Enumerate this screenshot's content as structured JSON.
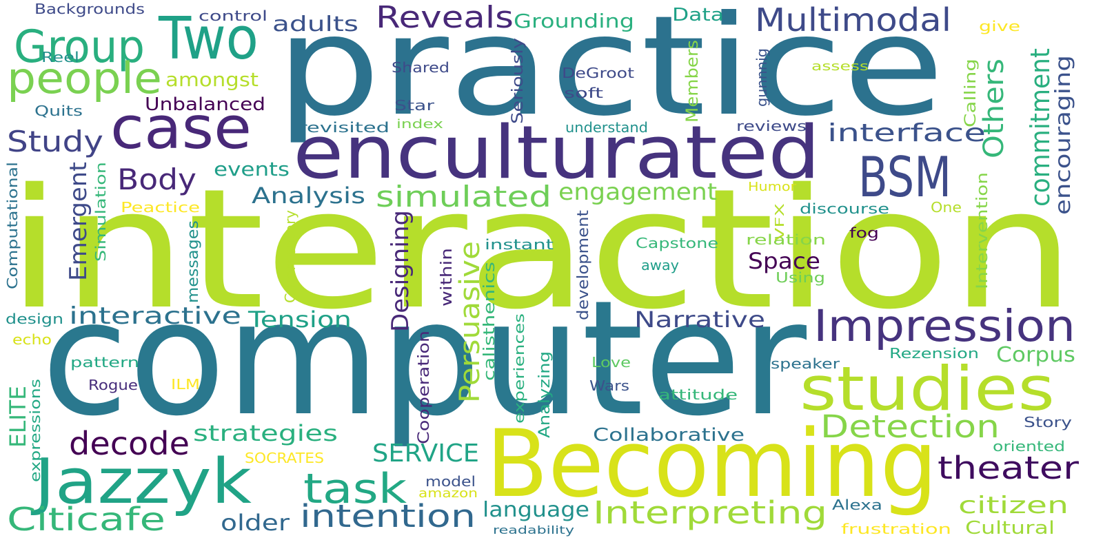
{
  "words": [
    "practice",
    "interaction",
    "computer",
    "enculturated",
    "Becoming",
    "studies",
    "BSM",
    "Impression",
    "Jazzyk",
    "case",
    "Two",
    "Group",
    "people",
    "task",
    "intention",
    "Citicafe",
    "decode",
    "Interpreting",
    "Detection",
    "theater",
    "Multimodal",
    "Reveals",
    "simulated",
    "engagement",
    "interface",
    "Study",
    "Body",
    "interactive",
    "Tension",
    "Narrative",
    "strategies",
    "SERVICE",
    "language",
    "Analysis",
    "events",
    "Space",
    "Collaborative",
    "Corpus",
    "citizen",
    "Cultural",
    "older",
    "Unbalanced",
    "amongst",
    "adults",
    "Grounding",
    "Data",
    "Backgrounds",
    "control",
    "Reel",
    "Quits",
    "Shared",
    "DeGroot",
    "soft",
    "Star",
    "revisited",
    "index",
    "understand",
    "reviews",
    "assess",
    "give",
    "Peactice",
    "Humor",
    "discourse",
    "One",
    "fog",
    "relation",
    "instant",
    "Capstone",
    "away",
    "Using",
    "design",
    "echo",
    "pattern",
    "Rogue",
    "ILM",
    "Love",
    "speaker",
    "Rezension",
    "Wars",
    "attitude",
    "Story",
    "oriented",
    "SOCRATES",
    "model",
    "amazon",
    "Alexa",
    "readability",
    "frustration",
    "Others",
    "commitment",
    "encouraging",
    "Calling",
    "gunnnig",
    "Members",
    "Seriously",
    "Emergent",
    "Simulation",
    "Computational",
    "Persuasive",
    "Designing",
    "within",
    "calisthenics",
    "development",
    "messages",
    "Commentary",
    "VFX",
    "Intervention",
    "ELITE",
    "expressions",
    "Cooperation",
    "experiences",
    "Analyzing"
  ]
}
